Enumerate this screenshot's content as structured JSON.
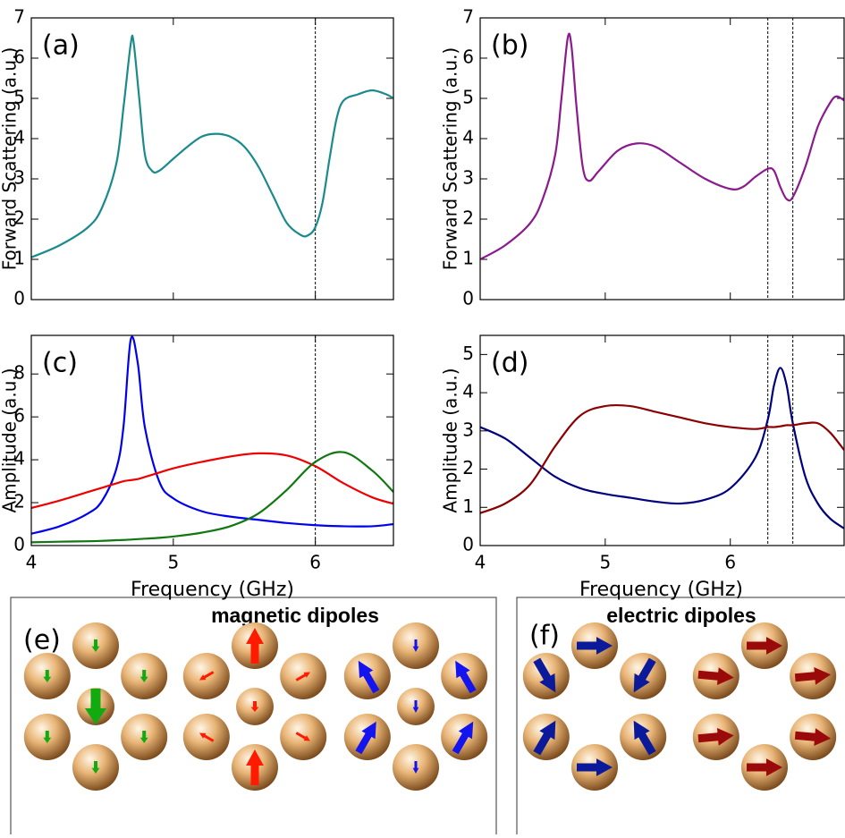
{
  "chart_data": [
    {
      "type": "line",
      "panel_label": "(a)",
      "ylabel": "Forward Scattering (a.u.)",
      "x": [
        4.0,
        4.2,
        4.4,
        4.5,
        4.6,
        4.65,
        4.7,
        4.72,
        4.76,
        4.8,
        4.85,
        4.9,
        5.0,
        5.1,
        5.2,
        5.3,
        5.4,
        5.5,
        5.6,
        5.7,
        5.8,
        5.9,
        5.95,
        6.0,
        6.05,
        6.1,
        6.15,
        6.2,
        6.3,
        6.4,
        6.5,
        6.55
      ],
      "series": [
        {
          "color": "#1b8a8c",
          "values": [
            1.05,
            1.35,
            1.8,
            2.3,
            3.4,
            4.8,
            6.35,
            6.4,
            5.0,
            3.6,
            3.2,
            3.2,
            3.5,
            3.8,
            4.05,
            4.12,
            4.05,
            3.8,
            3.3,
            2.6,
            1.9,
            1.6,
            1.6,
            1.8,
            2.4,
            3.5,
            4.5,
            4.95,
            5.1,
            5.2,
            5.1,
            5.0
          ]
        }
      ],
      "xlim": [
        4,
        6.55
      ],
      "xticks": [
        4,
        5,
        6
      ],
      "ylim": [
        0,
        7
      ],
      "yticks": [
        0,
        1,
        2,
        3,
        4,
        5,
        6,
        7
      ],
      "vlines": [
        6
      ]
    },
    {
      "type": "line",
      "panel_label": "(b)",
      "ylabel": "Forward Scattering (a.u.)",
      "x": [
        4.0,
        4.2,
        4.4,
        4.5,
        4.6,
        4.65,
        4.7,
        4.73,
        4.77,
        4.82,
        4.87,
        4.95,
        5.1,
        5.25,
        5.4,
        5.6,
        5.8,
        6.0,
        6.1,
        6.2,
        6.3,
        6.35,
        6.4,
        6.45,
        6.5,
        6.6,
        6.7,
        6.8,
        6.85,
        6.91
      ],
      "series": [
        {
          "color": "#8b1a8e",
          "values": [
            1.0,
            1.35,
            1.9,
            2.5,
            3.6,
            5.0,
            6.5,
            6.3,
            4.8,
            3.3,
            2.95,
            3.2,
            3.7,
            3.88,
            3.8,
            3.4,
            3.0,
            2.75,
            2.8,
            3.05,
            3.25,
            3.2,
            2.8,
            2.5,
            2.55,
            3.3,
            4.3,
            4.9,
            5.05,
            4.95
          ]
        }
      ],
      "xlim": [
        4,
        6.91
      ],
      "xticks": [
        4,
        5,
        6
      ],
      "ylim": [
        0,
        7
      ],
      "yticks": [
        0,
        1,
        2,
        3,
        4,
        5,
        6,
        7
      ],
      "vlines": [
        6.3,
        6.5
      ]
    },
    {
      "type": "line",
      "panel_label": "(c)",
      "ylabel": "Amplitude (a.u.)",
      "xlabel": "Frequency (GHz)",
      "x": [
        4.0,
        4.2,
        4.4,
        4.5,
        4.6,
        4.65,
        4.7,
        4.75,
        4.8,
        4.9,
        5.0,
        5.2,
        5.4,
        5.6,
        5.8,
        6.0,
        6.2,
        6.4,
        6.55
      ],
      "series": [
        {
          "color": "#0000ee",
          "values": [
            0.55,
            0.9,
            1.5,
            2.1,
            3.6,
            5.6,
            9.6,
            8.5,
            5.5,
            3.0,
            2.2,
            1.6,
            1.35,
            1.2,
            1.05,
            0.95,
            0.9,
            0.9,
            1.0
          ]
        },
        {
          "color": "#ee0000",
          "values": [
            1.75,
            2.1,
            2.5,
            2.7,
            2.9,
            3.0,
            3.05,
            3.1,
            3.2,
            3.4,
            3.6,
            3.9,
            4.15,
            4.3,
            4.2,
            3.7,
            2.9,
            2.25,
            1.95
          ]
        },
        {
          "color": "#117711",
          "values": [
            0.15,
            0.18,
            0.2,
            0.22,
            0.25,
            0.26,
            0.28,
            0.3,
            0.32,
            0.36,
            0.42,
            0.6,
            0.9,
            1.5,
            2.6,
            3.9,
            4.35,
            3.5,
            2.5
          ]
        }
      ],
      "xlim": [
        4,
        6.55
      ],
      "xticks": [
        4,
        5,
        6
      ],
      "ylim": [
        0,
        9.8
      ],
      "yticks": [
        0,
        2,
        4,
        6,
        8
      ],
      "vlines": [
        6
      ]
    },
    {
      "type": "line",
      "panel_label": "(d)",
      "ylabel": "Amplitude (a.u.)",
      "xlabel": "Frequency (GHz)",
      "x": [
        4.0,
        4.2,
        4.4,
        4.6,
        4.8,
        5.0,
        5.2,
        5.4,
        5.6,
        5.8,
        6.0,
        6.2,
        6.3,
        6.35,
        6.4,
        6.45,
        6.5,
        6.6,
        6.7,
        6.8,
        6.91
      ],
      "series": [
        {
          "color": "#00007f",
          "values": [
            3.1,
            2.8,
            2.3,
            1.8,
            1.5,
            1.35,
            1.25,
            1.15,
            1.1,
            1.2,
            1.5,
            2.3,
            3.3,
            4.2,
            4.65,
            4.2,
            3.2,
            1.8,
            1.1,
            0.7,
            0.45
          ]
        },
        {
          "color": "#8b0000",
          "values": [
            0.85,
            1.1,
            1.6,
            2.6,
            3.4,
            3.65,
            3.65,
            3.5,
            3.35,
            3.2,
            3.1,
            3.05,
            3.1,
            3.1,
            3.12,
            3.15,
            3.15,
            3.2,
            3.2,
            2.95,
            2.5
          ]
        }
      ],
      "xlim": [
        4,
        6.91
      ],
      "xticks": [
        4,
        5,
        6
      ],
      "ylim": [
        0,
        5.5
      ],
      "yticks": [
        0,
        1,
        2,
        3,
        4,
        5
      ],
      "vlines": [
        6.3,
        6.5
      ]
    }
  ],
  "panels": [
    {
      "label": "(e)",
      "title": "magnetic dipoles",
      "color": "#e8321e"
    },
    {
      "label": "(f)",
      "title": "electric dipoles",
      "color": "#1a5fd0"
    }
  ]
}
